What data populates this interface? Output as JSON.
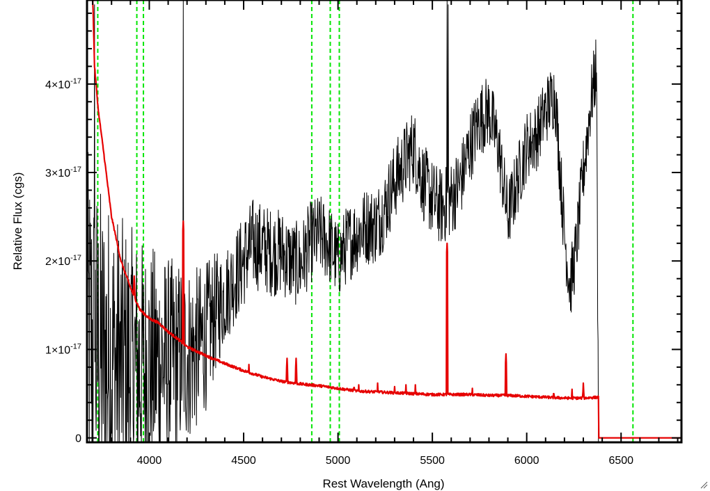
{
  "chart_data": {
    "type": "line",
    "xlabel": "Rest Wavelength (Ang)",
    "ylabel": "Relative Flux (cgs)",
    "xlim": [
      3670,
      6820
    ],
    "ylim": [
      -0.05,
      4.95
    ],
    "y_scale_factor": "1e-17",
    "x_ticks": [
      4000,
      4500,
      5000,
      5500,
      6000,
      6500
    ],
    "x_tick_labels": [
      "4000",
      "4500",
      "5000",
      "5500",
      "6000",
      "6500"
    ],
    "y_ticks": [
      0,
      1,
      2,
      3,
      4
    ],
    "y_tick_labels": [
      {
        "mant": "0",
        "exp": ""
      },
      {
        "mant": "1×10",
        "exp": "-17"
      },
      {
        "mant": "2×10",
        "exp": "-17"
      },
      {
        "mant": "3×10",
        "exp": "-17"
      },
      {
        "mant": "4×10",
        "exp": "-17"
      }
    ],
    "grid": false,
    "series": [
      {
        "role": "observed spectrum",
        "color": "#000000",
        "style": "solid-noisy",
        "anchors": [
          [
            3670,
            1.2
          ],
          [
            3700,
            1.0
          ],
          [
            3750,
            0.9
          ],
          [
            3800,
            0.85
          ],
          [
            3850,
            0.8
          ],
          [
            3900,
            0.8
          ],
          [
            3950,
            0.78
          ],
          [
            4000,
            0.8
          ],
          [
            4050,
            0.85
          ],
          [
            4100,
            0.85
          ],
          [
            4150,
            0.9
          ],
          [
            4200,
            0.95
          ],
          [
            4250,
            1.0
          ],
          [
            4300,
            1.15
          ],
          [
            4350,
            1.4
          ],
          [
            4400,
            1.6
          ],
          [
            4450,
            1.8
          ],
          [
            4500,
            2.0
          ],
          [
            4550,
            2.2
          ],
          [
            4600,
            2.15
          ],
          [
            4650,
            2.1
          ],
          [
            4700,
            2.1
          ],
          [
            4750,
            2.0
          ],
          [
            4800,
            1.95
          ],
          [
            4850,
            2.2
          ],
          [
            4900,
            2.3
          ],
          [
            4950,
            2.2
          ],
          [
            5000,
            2.0
          ],
          [
            5050,
            2.2
          ],
          [
            5100,
            2.3
          ],
          [
            5150,
            2.4
          ],
          [
            5200,
            2.4
          ],
          [
            5250,
            2.6
          ],
          [
            5300,
            2.9
          ],
          [
            5350,
            3.1
          ],
          [
            5400,
            3.3
          ],
          [
            5450,
            2.9
          ],
          [
            5500,
            2.7
          ],
          [
            5550,
            2.6
          ],
          [
            5600,
            2.7
          ],
          [
            5650,
            2.9
          ],
          [
            5700,
            3.3
          ],
          [
            5750,
            3.6
          ],
          [
            5800,
            3.7
          ],
          [
            5850,
            3.3
          ],
          [
            5900,
            2.5
          ],
          [
            5950,
            2.9
          ],
          [
            6000,
            3.3
          ],
          [
            6050,
            3.4
          ],
          [
            6100,
            3.7
          ],
          [
            6150,
            3.9
          ],
          [
            6200,
            2.3
          ],
          [
            6230,
            1.7
          ],
          [
            6260,
            2.1
          ],
          [
            6300,
            3.0
          ],
          [
            6340,
            3.8
          ],
          [
            6370,
            4.2
          ],
          [
            6380,
            0.0
          ],
          [
            6820,
            0.0
          ]
        ],
        "noise": [
          [
            3670,
            2.1
          ],
          [
            4000,
            1.4
          ],
          [
            4300,
            0.85
          ],
          [
            4400,
            0.55
          ],
          [
            5000,
            0.45
          ],
          [
            5500,
            0.45
          ],
          [
            6000,
            0.4
          ],
          [
            6380,
            0.4
          ]
        ],
        "spikes": [
          [
            4180,
            5.0
          ],
          [
            5578,
            5.0
          ],
          [
            5584,
            4.9
          ],
          [
            3710,
            4.9
          ]
        ]
      },
      {
        "role": "error spectrum",
        "color": "#e60000",
        "style": "solid",
        "anchors": [
          [
            3700,
            5.0
          ],
          [
            3710,
            4.2
          ],
          [
            3730,
            3.7
          ],
          [
            3760,
            3.2
          ],
          [
            3800,
            2.5
          ],
          [
            3850,
            2.0
          ],
          [
            3900,
            1.7
          ],
          [
            3950,
            1.45
          ],
          [
            4000,
            1.35
          ],
          [
            4050,
            1.3
          ],
          [
            4100,
            1.2
          ],
          [
            4150,
            1.12
          ],
          [
            4200,
            1.03
          ],
          [
            4300,
            0.93
          ],
          [
            4400,
            0.84
          ],
          [
            4500,
            0.76
          ],
          [
            4600,
            0.69
          ],
          [
            4700,
            0.64
          ],
          [
            4800,
            0.61
          ],
          [
            4900,
            0.59
          ],
          [
            5000,
            0.56
          ],
          [
            5100,
            0.53
          ],
          [
            5200,
            0.52
          ],
          [
            5300,
            0.51
          ],
          [
            5400,
            0.5
          ],
          [
            5500,
            0.49
          ],
          [
            5600,
            0.49
          ],
          [
            5700,
            0.49
          ],
          [
            5800,
            0.48
          ],
          [
            5900,
            0.48
          ],
          [
            6000,
            0.47
          ],
          [
            6100,
            0.46
          ],
          [
            6200,
            0.45
          ],
          [
            6300,
            0.45
          ],
          [
            6380,
            0.46
          ],
          [
            6382,
            0.0
          ],
          [
            6820,
            0.0
          ]
        ],
        "spikes": [
          [
            3920,
            1.83
          ],
          [
            4180,
            2.45
          ],
          [
            4528,
            0.83
          ],
          [
            4730,
            0.9
          ],
          [
            4778,
            0.9
          ],
          [
            5578,
            2.2
          ],
          [
            5890,
            0.95
          ],
          [
            5085,
            0.62
          ],
          [
            5110,
            0.6
          ],
          [
            5210,
            0.62
          ],
          [
            5300,
            0.58
          ],
          [
            5360,
            0.6
          ],
          [
            5410,
            0.6
          ],
          [
            5712,
            0.56
          ],
          [
            6143,
            0.55
          ],
          [
            6183,
            0.5
          ],
          [
            6240,
            0.55
          ],
          [
            6300,
            0.62
          ]
        ]
      }
    ],
    "reference_lines": {
      "color": "#00e600",
      "style": "dashed",
      "x": [
        3727,
        3934,
        3969,
        4861,
        4959,
        5007,
        6563
      ]
    }
  }
}
